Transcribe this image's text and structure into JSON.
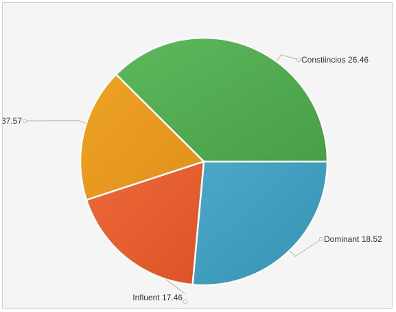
{
  "chart_data": {
    "type": "pie",
    "title": "",
    "slices": [
      {
        "label": "Constiincios",
        "value": 26.46,
        "color": "#4aa8c8",
        "color_dark": "#3792b3"
      },
      {
        "label": "Dominant",
        "value": 18.52,
        "color": "#ee6a3a",
        "color_dark": "#db5326"
      },
      {
        "label": "Influent",
        "value": 17.46,
        "color": "#eea424",
        "color_dark": "#e18f1a"
      },
      {
        "label": "Stabil",
        "value": 37.57,
        "color": "#5db85c",
        "color_dark": "#479f46"
      }
    ],
    "start_angle_deg": 0,
    "direction": "clockwise",
    "separator_color": "#ffffff",
    "leader_color": "#b5b5b5"
  }
}
